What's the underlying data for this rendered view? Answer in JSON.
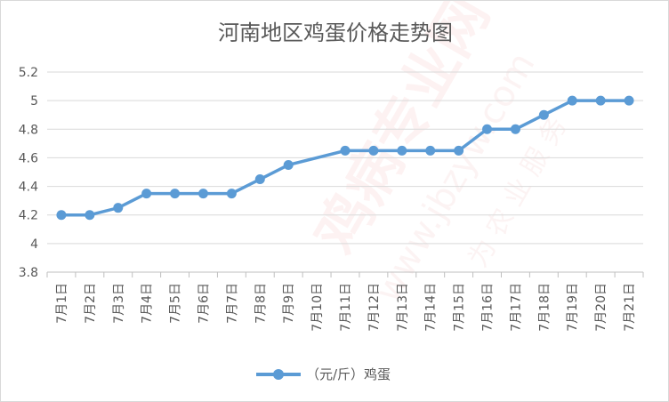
{
  "chart_data": {
    "type": "line",
    "title": "河南地区鸡蛋价格走势图",
    "xlabel": "",
    "ylabel": "",
    "categories": [
      "7月1日",
      "7月2日",
      "7月3日",
      "7月4日",
      "7月5日",
      "7月6日",
      "7月7日",
      "7月8日",
      "7月9日",
      "7月10日",
      "7月11日",
      "7月12日",
      "7月13日",
      "7月14日",
      "7月15日",
      "7月16日",
      "7月17日",
      "7月18日",
      "7月19日",
      "7月20日",
      "7月21日"
    ],
    "series": [
      {
        "name": "（元/斤）鸡蛋",
        "values": [
          4.2,
          4.2,
          4.25,
          4.35,
          4.35,
          4.35,
          4.35,
          4.45,
          4.55,
          null,
          4.65,
          4.65,
          4.65,
          4.65,
          4.65,
          4.8,
          4.8,
          4.9,
          5.0,
          5.0,
          5.0
        ],
        "color": "#5b9bd5"
      }
    ],
    "ylim": [
      3.8,
      5.2
    ],
    "yticks": [
      "3.8",
      "4",
      "4.2",
      "4.4",
      "4.6",
      "4.8",
      "5",
      "5.2"
    ],
    "grid": true,
    "legend": "bottom"
  },
  "watermark": {
    "brand_text": "鸡病专业网",
    "url_text": "www.jbzyw.com",
    "slogan": "为 农 业 服 务"
  },
  "colors": {
    "line": "#5b9bd5",
    "grid": "#d9d9d9",
    "text": "#595959",
    "watermark": "#e23a3a"
  }
}
